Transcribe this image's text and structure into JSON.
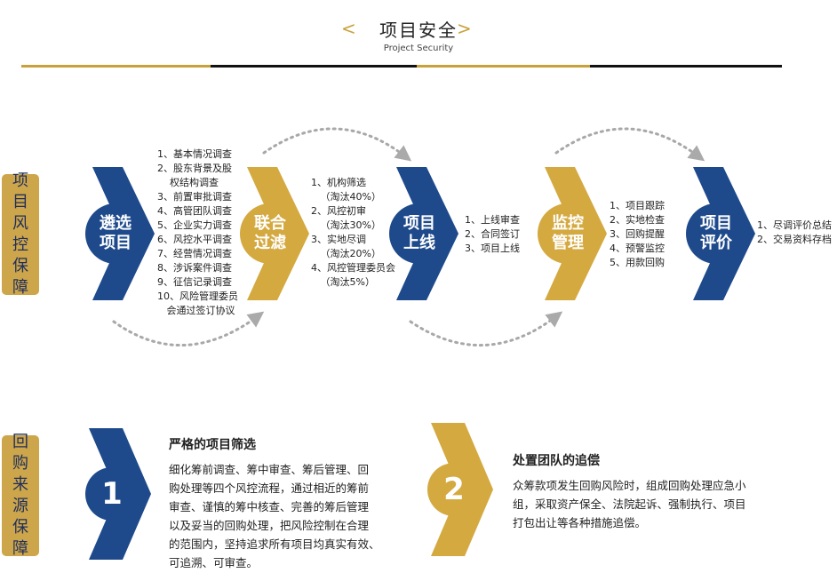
{
  "header": {
    "title_cn": "项目安全",
    "title_en": "Project Security",
    "left_chevron": "<",
    "right_chevron": ">"
  },
  "risk_tag": "项目风控保障",
  "buyback_tag": "回购来源保障",
  "steps": [
    {
      "label_line1": "遴选",
      "label_line2": "项目",
      "color": "#1e4a8c"
    },
    {
      "label_line1": "联合",
      "label_line2": "过滤",
      "color": "#d4a940"
    },
    {
      "label_line1": "项目",
      "label_line2": "上线",
      "color": "#1e4a8c"
    },
    {
      "label_line1": "监控",
      "label_line2": "管理",
      "color": "#d4a940"
    },
    {
      "label_line1": "项目",
      "label_line2": "评价",
      "color": "#1e4a8c"
    }
  ],
  "lists": {
    "select": [
      "1、基本情况调查",
      "2、股东背景及股",
      "    权结构调查",
      "3、前置审批调查",
      "4、高管团队调查",
      "5、企业实力调查",
      "6、风控水平调查",
      "7、经营情况调查",
      "8、涉诉案件调查",
      "9、征信记录调查",
      "10、风险管理委员",
      "   会通过签订协议"
    ],
    "filter": [
      "1、机构筛选",
      "   （淘汰40%）",
      "2、风控初审",
      "   （淘汰30%）",
      "3、实地尽调",
      "   （淘汰20%）",
      "4、风控管理委员会",
      "   （淘汰5%）"
    ],
    "online": [
      "1、上线审查",
      "2、合同签订",
      "3、项目上线"
    ],
    "monitor": [
      "1、项目跟踪",
      "2、实地检查",
      "3、回购提醒",
      "4、预警监控",
      "5、用款回购"
    ],
    "evaluate": [
      "1、尽调评价总结",
      "2、交易资料存档"
    ]
  },
  "guarantees": [
    {
      "number": "1",
      "title": "严格的项目筛选",
      "lines": [
        "细化筹前调查、筹中审查、筹后管理、回",
        "购处理等四个风控流程，通过相近的筹前",
        "审查、谨慎的筹中核查、完善的筹后管理",
        "以及妥当的回购处理，把风险控制在合理",
        "的范围内，坚持追求所有项目均真实有效、",
        "可追溯、可审查。"
      ]
    },
    {
      "number": "2",
      "title": "处置团队的追偿",
      "lines": [
        "众筹款项发生回购风险时，组成回购处理应急小",
        "组，采取资产保全、法院起诉、强制执行、项目",
        "打包出让等各种措施追偿。"
      ]
    }
  ],
  "colors": {
    "navy": "#1e4a8c",
    "gold": "#d4a940",
    "tag_gold": "#cda54a"
  }
}
